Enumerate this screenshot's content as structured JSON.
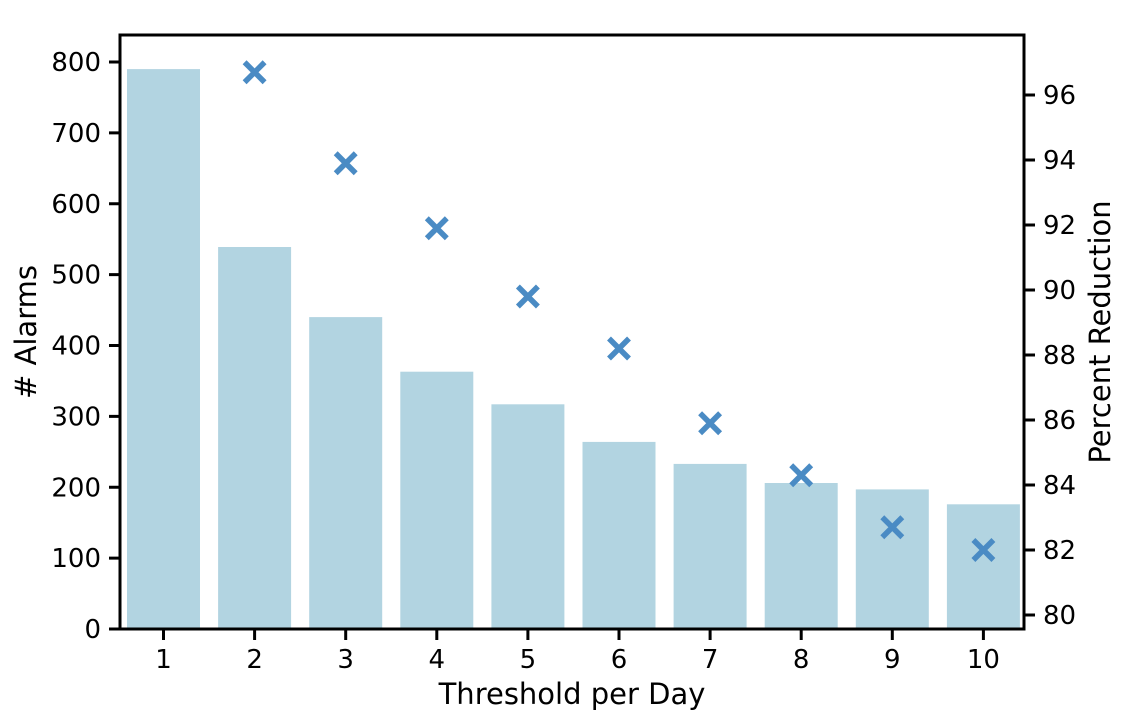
{
  "chart_data": {
    "type": "bar",
    "title": "",
    "xlabel": "Threshold per Day",
    "ylabel_left": "# Alarms",
    "ylabel_right": "Percent Reduction",
    "categories": [
      1,
      2,
      3,
      4,
      5,
      6,
      7,
      8,
      9,
      10
    ],
    "series": [
      {
        "name": "# Alarms",
        "type": "bar",
        "axis": "left",
        "x": [
          1,
          2,
          3,
          4,
          5,
          6,
          7,
          8,
          9,
          10
        ],
        "values": [
          790,
          539,
          440,
          363,
          317,
          264,
          233,
          206,
          197,
          176
        ]
      },
      {
        "name": "Percent Reduction",
        "type": "scatter",
        "marker": "x",
        "axis": "right",
        "x": [
          2,
          3,
          4,
          5,
          6,
          7,
          8,
          9,
          10
        ],
        "values": [
          96.7,
          93.9,
          91.9,
          89.8,
          88.2,
          85.9,
          84.3,
          82.7,
          82.0
        ]
      }
    ],
    "left_axis": {
      "ticks": [
        0,
        100,
        200,
        300,
        400,
        500,
        600,
        700,
        800
      ],
      "lim": [
        0,
        838
      ]
    },
    "right_axis": {
      "ticks": [
        80,
        82,
        84,
        86,
        88,
        90,
        92,
        94,
        96
      ],
      "lim": [
        79.6,
        97.9
      ]
    },
    "x_axis": {
      "ticks": [
        1,
        2,
        3,
        4,
        5,
        6,
        7,
        8,
        9,
        10
      ]
    },
    "grid": false,
    "legend": "none",
    "colors": {
      "bar_fill": "#b2d4e1",
      "marker": "#4a8bc4",
      "frame": "#000000",
      "text": "#000000",
      "background": "#ffffff"
    }
  }
}
